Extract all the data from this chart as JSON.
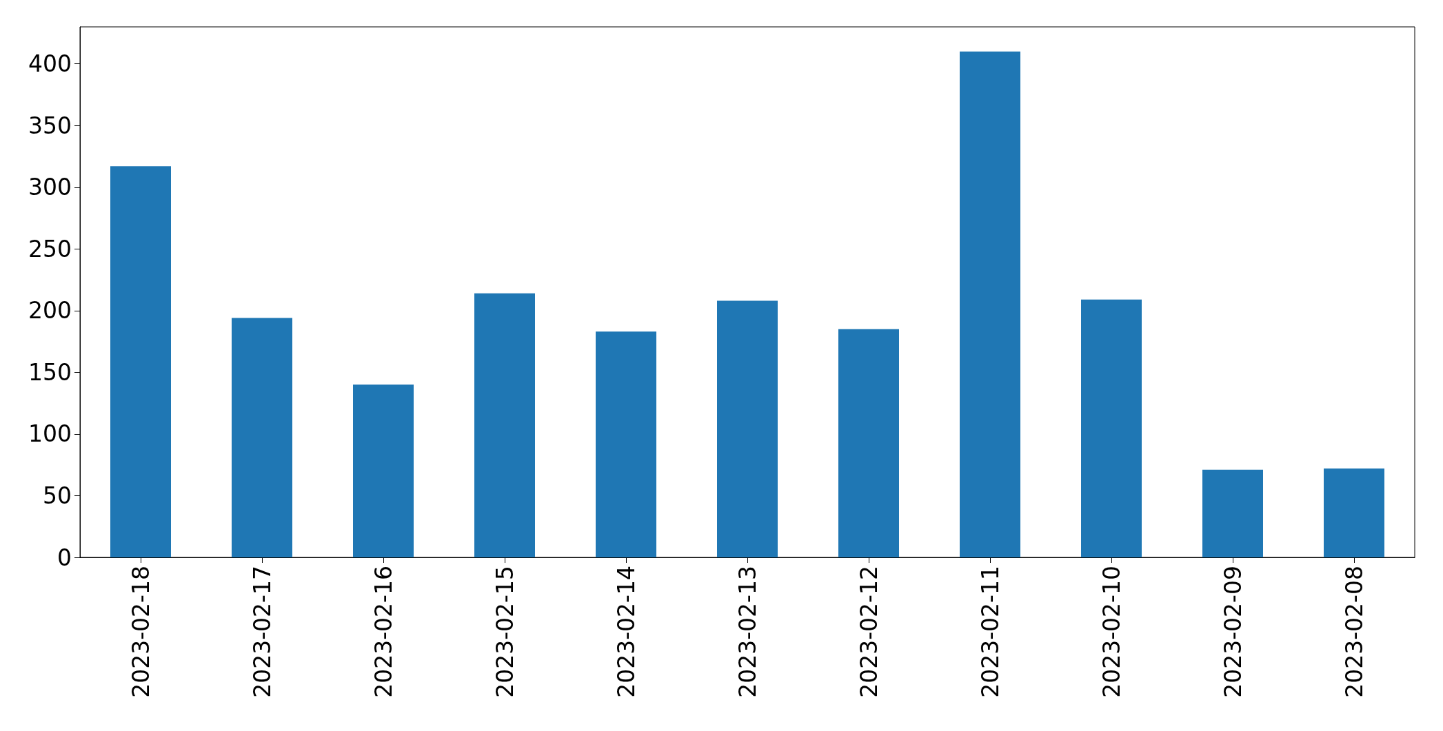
{
  "chart_data": {
    "type": "bar",
    "categories": [
      "2023-02-18",
      "2023-02-17",
      "2023-02-16",
      "2023-02-15",
      "2023-02-14",
      "2023-02-13",
      "2023-02-12",
      "2023-02-11",
      "2023-02-10",
      "2023-02-09",
      "2023-02-08"
    ],
    "values": [
      317,
      194,
      140,
      214,
      183,
      208,
      185,
      410,
      209,
      71,
      72
    ],
    "color": "#1f77b4",
    "ylim": [
      0,
      430
    ],
    "yticks": [
      0,
      50,
      100,
      150,
      200,
      250,
      300,
      350,
      400
    ]
  }
}
